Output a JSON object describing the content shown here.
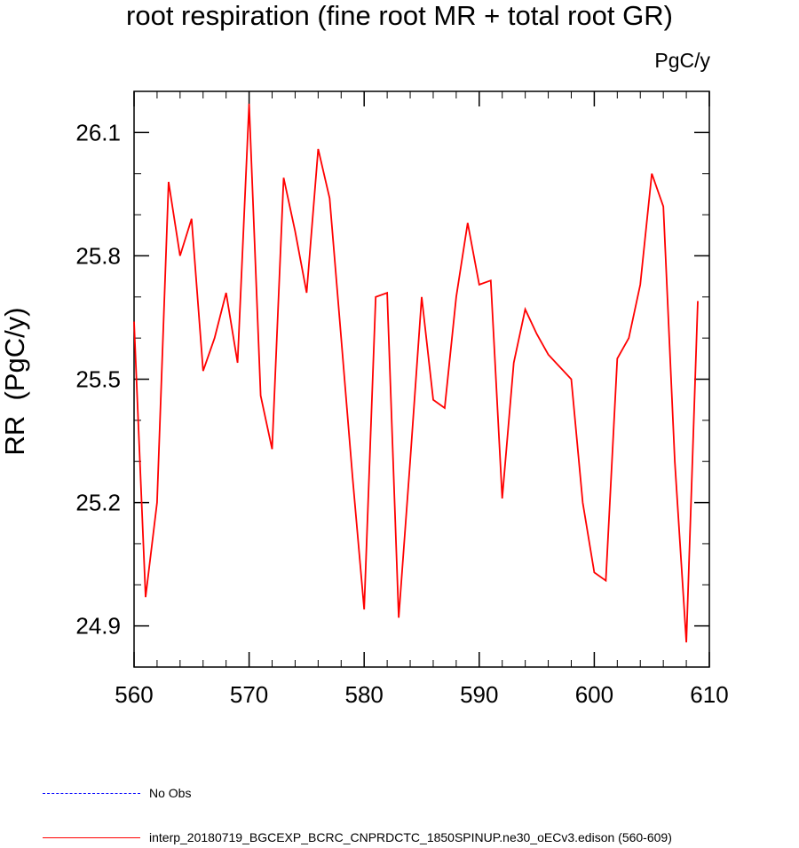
{
  "chart_data": {
    "type": "line",
    "title": "root respiration (fine root MR + total root GR)",
    "units": "PgC/y",
    "xlabel": "",
    "ylabel": "RR  (PgC/y)",
    "xlim": [
      560,
      610
    ],
    "ylim": [
      24.8,
      26.2
    ],
    "xticks": [
      560,
      570,
      580,
      590,
      600,
      610
    ],
    "yticks": [
      24.9,
      25.2,
      25.5,
      25.8,
      26.1
    ],
    "grid": false,
    "legend_position": "bottom",
    "series": [
      {
        "name": "interp_20180719_BGCEXP_BCRC_CNPRDCTC_1850SPINUP.ne30_oECv3.edison (560-609)",
        "color": "#ff0000",
        "style": "solid",
        "x": [
          560,
          561,
          562,
          563,
          564,
          565,
          566,
          567,
          568,
          569,
          570,
          571,
          572,
          573,
          574,
          575,
          576,
          577,
          578,
          579,
          580,
          581,
          582,
          583,
          584,
          585,
          586,
          587,
          588,
          589,
          590,
          591,
          592,
          593,
          594,
          595,
          596,
          597,
          598,
          599,
          600,
          601,
          602,
          603,
          604,
          605,
          606,
          607,
          608,
          609
        ],
        "y": [
          25.64,
          24.97,
          25.2,
          25.98,
          25.8,
          25.89,
          25.52,
          25.6,
          25.71,
          25.54,
          26.17,
          25.46,
          25.33,
          25.99,
          25.86,
          25.71,
          26.06,
          25.94,
          25.6,
          25.26,
          24.94,
          25.7,
          25.71,
          24.92,
          25.3,
          25.7,
          25.45,
          25.43,
          25.7,
          25.88,
          25.73,
          25.74,
          25.21,
          25.54,
          25.67,
          25.61,
          25.56,
          25.53,
          25.5,
          25.2,
          25.03,
          25.01,
          25.55,
          25.6,
          25.73,
          26.0,
          25.92,
          25.3,
          24.86,
          25.69
        ]
      },
      {
        "name": "No Obs",
        "color": "#0000ff",
        "style": "dashed",
        "x": [],
        "y": []
      }
    ]
  }
}
